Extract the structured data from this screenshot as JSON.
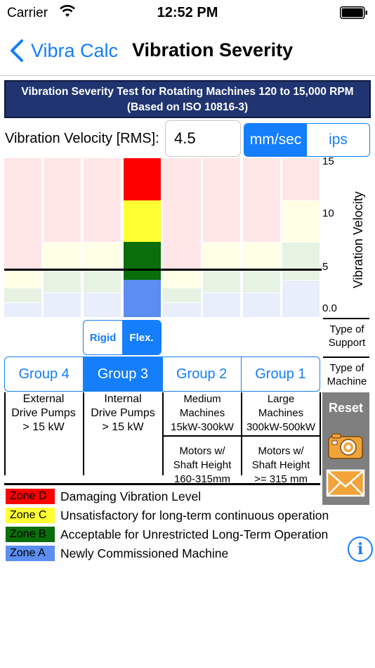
{
  "status": {
    "carrier": "Carrier",
    "time": "12:52 PM"
  },
  "nav": {
    "back_label": "Vibra Calc",
    "title": "Vibration Severity"
  },
  "header": {
    "line1": "Vibration Severity Test for Rotating Machines 120 to 15,000 RPM",
    "line2": "(Based on ISO 10816-3)"
  },
  "velocity": {
    "label": "Vibration Velocity [RMS]:",
    "value": "4.5"
  },
  "units": {
    "options": [
      "mm/sec",
      "ips"
    ],
    "selected": "mm/sec"
  },
  "axis": {
    "ticks": [
      "15",
      "10",
      "5",
      "0.0"
    ],
    "title": "Vibration Velocity",
    "max": 15,
    "threshold": 4.5
  },
  "colors": {
    "zone_d": "#ff0000",
    "zone_c": "#ffff33",
    "zone_b": "#0a6e0a",
    "zone_a": "#5b8ef0",
    "zone_d_light": "#ffe6e6",
    "zone_c_light": "#ffffe6",
    "zone_b_light": "#e6f2e2",
    "zone_a_light": "#e9eefc",
    "accent": "#147efb"
  },
  "support": {
    "options": [
      "Rigid",
      "Flex."
    ],
    "selected": "Flex.",
    "label": "Type of Support"
  },
  "machine_type_label": "Type of Machine",
  "groups": {
    "options": [
      "Group 4",
      "Group 3",
      "Group 2",
      "Group 1"
    ],
    "selected": "Group 3"
  },
  "machines": [
    {
      "lines": [
        "External",
        "Drive Pumps",
        "> 15 kW"
      ]
    },
    {
      "lines": [
        "Internal",
        "Drive Pumps",
        "> 15 kW"
      ]
    },
    {
      "lines": [
        "Medium",
        "Machines",
        "15kW-300kW"
      ],
      "sub": [
        "Motors w/",
        "Shaft Height",
        "160-315mm"
      ]
    },
    {
      "lines": [
        "Large",
        "Machines",
        "300kW-500kW"
      ],
      "sub": [
        "Motors w/",
        "Shaft Height",
        ">= 315 mm"
      ]
    }
  ],
  "buttons": {
    "reset": "Reset",
    "camera_icon": "camera-icon",
    "mail_icon": "mail-icon",
    "info_icon": "info-icon"
  },
  "legend": [
    {
      "zone": "Zone D",
      "text": "Damaging Vibration Level"
    },
    {
      "zone": "Zone C",
      "text": "Unsatisfactory for long-term continuous operation"
    },
    {
      "zone": "Zone B",
      "text": "Acceptable for Unrestricted Long-Term Operation"
    },
    {
      "zone": "Zone A",
      "text": "Newly Commissioned Machine"
    }
  ],
  "chart_data": {
    "type": "bar",
    "categories": [
      "Group 4 Rigid",
      "Group 4 Flex.",
      "Group 3 Rigid",
      "Group 3 Flex.",
      "Group 2 Rigid",
      "Group 2 Flex.",
      "Group 1 Rigid",
      "Group 1 Flex."
    ],
    "ylim": [
      0,
      15
    ],
    "selected_index": 3,
    "series": [
      {
        "name": "Zone A",
        "values": [
          1.4,
          2.3,
          2.3,
          3.5,
          1.4,
          2.3,
          2.3,
          3.5
        ]
      },
      {
        "name": "Zone B",
        "values": [
          2.8,
          4.5,
          4.5,
          7.1,
          2.8,
          4.5,
          4.5,
          7.1
        ]
      },
      {
        "name": "Zone C",
        "values": [
          4.5,
          7.1,
          7.1,
          11.0,
          4.5,
          7.1,
          7.1,
          11.0
        ]
      },
      {
        "name": "Zone D",
        "values": [
          15,
          15,
          15,
          15,
          15,
          15,
          15,
          15
        ]
      }
    ]
  }
}
